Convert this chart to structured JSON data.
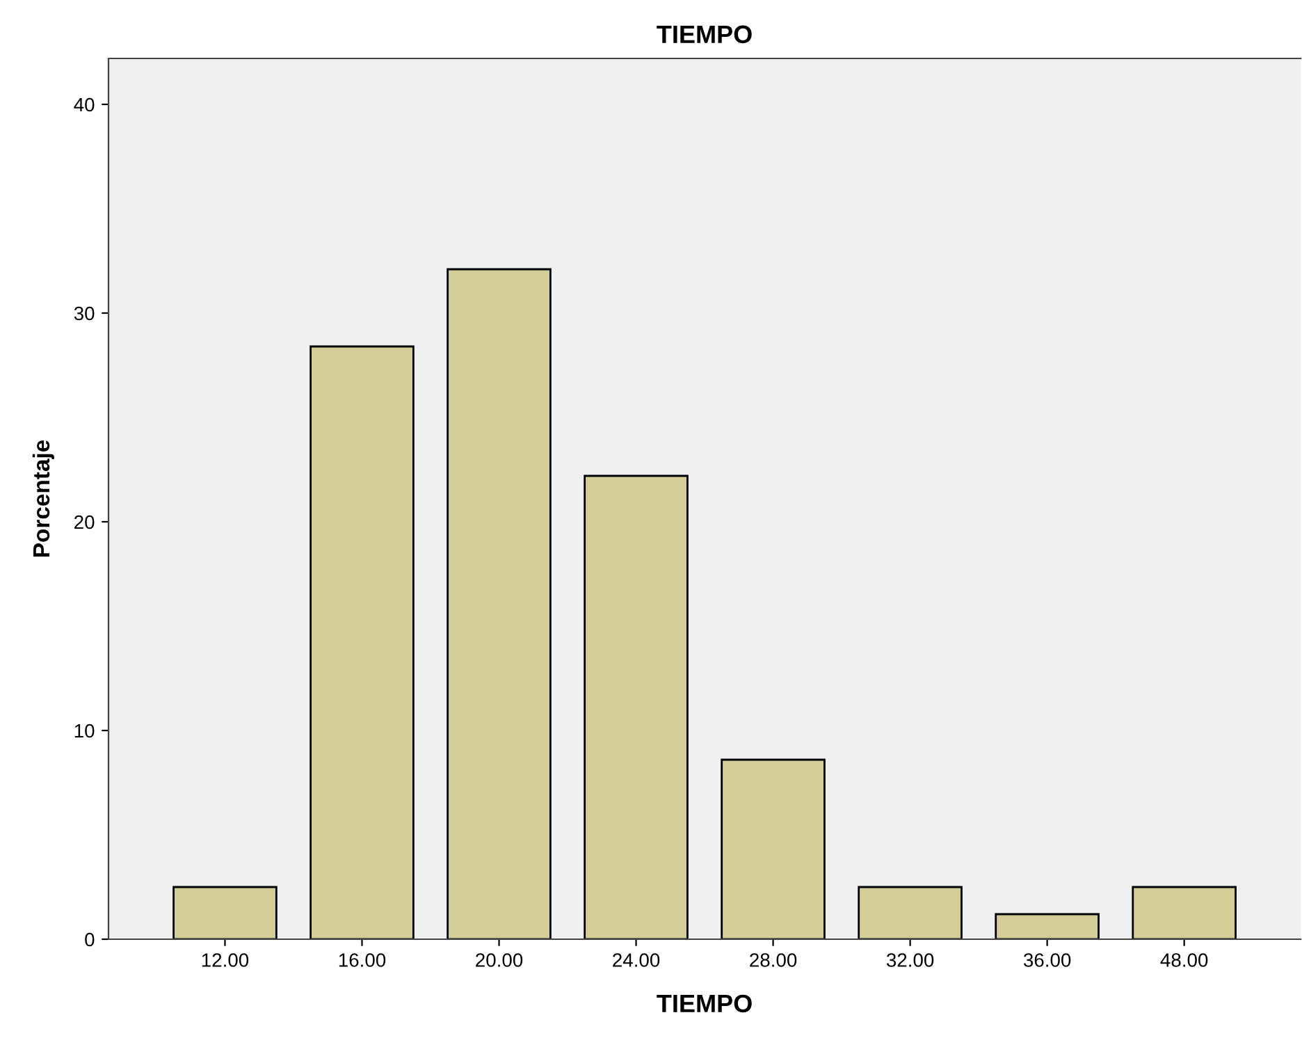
{
  "chart_data": {
    "type": "bar",
    "title": "TIEMPO",
    "xlabel": "TIEMPO",
    "ylabel": "Porcentaje",
    "categories": [
      "12.00",
      "16.00",
      "20.00",
      "24.00",
      "28.00",
      "32.00",
      "36.00",
      "48.00"
    ],
    "values": [
      2.5,
      28.4,
      32.1,
      22.2,
      8.6,
      2.5,
      1.2,
      2.5
    ],
    "color": "#d3ce97",
    "ylim": [
      0,
      42.2
    ],
    "yticks": [
      0,
      10,
      20,
      30,
      40
    ],
    "grid": false
  }
}
